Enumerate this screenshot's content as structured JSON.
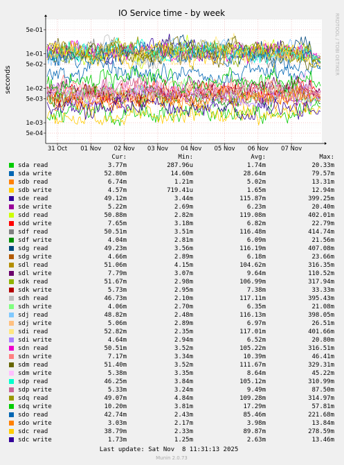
{
  "chart_data": {
    "type": "line",
    "title": "IO Service time - by week",
    "ylabel": "seconds",
    "yscale": "log",
    "ylim": [
      0.00025,
      1.0
    ],
    "y_ticks": [
      "5e-01",
      "1e-01",
      "5e-02",
      "1e-02",
      "5e-03",
      "1e-03",
      "5e-04"
    ],
    "x_ticks": [
      "31 Oct",
      "01 Nov",
      "02 Nov",
      "03 Nov",
      "04 Nov",
      "05 Nov",
      "06 Nov",
      "07 Nov"
    ],
    "legend_headers": {
      "cur": "Cur:",
      "min": "Min:",
      "avg": "Avg:",
      "max": "Max:"
    },
    "series": [
      {
        "name": "sda read",
        "color": "#00cc00",
        "cur": "3.77m",
        "min": "287.96u",
        "avg": "1.74m",
        "max": "20.33m"
      },
      {
        "name": "sda write",
        "color": "#0066b3",
        "cur": "52.80m",
        "min": "14.60m",
        "avg": "28.64m",
        "max": "79.57m"
      },
      {
        "name": "sdb read",
        "color": "#ff8000",
        "cur": "6.74m",
        "min": "1.21m",
        "avg": "5.02m",
        "max": "13.31m"
      },
      {
        "name": "sdb write",
        "color": "#ffcc00",
        "cur": "4.57m",
        "min": "719.41u",
        "avg": "1.65m",
        "max": "12.94m"
      },
      {
        "name": "sde read",
        "color": "#330099",
        "cur": "49.12m",
        "min": "3.44m",
        "avg": "115.87m",
        "max": "399.25m"
      },
      {
        "name": "sde write",
        "color": "#990099",
        "cur": "5.22m",
        "min": "2.69m",
        "avg": "6.23m",
        "max": "20.40m"
      },
      {
        "name": "sdd read",
        "color": "#ccff00",
        "cur": "50.88m",
        "min": "2.82m",
        "avg": "119.08m",
        "max": "402.01m"
      },
      {
        "name": "sdd write",
        "color": "#ff0000",
        "cur": "7.65m",
        "min": "3.18m",
        "avg": "6.82m",
        "max": "22.79m"
      },
      {
        "name": "sdf read",
        "color": "#808080",
        "cur": "50.51m",
        "min": "3.51m",
        "avg": "116.48m",
        "max": "414.74m"
      },
      {
        "name": "sdf write",
        "color": "#008f00",
        "cur": "4.04m",
        "min": "2.81m",
        "avg": "6.09m",
        "max": "21.56m"
      },
      {
        "name": "sdg read",
        "color": "#00487d",
        "cur": "49.23m",
        "min": "3.56m",
        "avg": "116.19m",
        "max": "407.08m"
      },
      {
        "name": "sdg write",
        "color": "#b35a00",
        "cur": "4.66m",
        "min": "2.89m",
        "avg": "6.18m",
        "max": "23.66m"
      },
      {
        "name": "sdl read",
        "color": "#b38f00",
        "cur": "51.06m",
        "min": "4.15m",
        "avg": "104.62m",
        "max": "316.35m"
      },
      {
        "name": "sdl write",
        "color": "#6b006b",
        "cur": "7.79m",
        "min": "3.07m",
        "avg": "9.64m",
        "max": "110.52m"
      },
      {
        "name": "sdk read",
        "color": "#8fb300",
        "cur": "51.67m",
        "min": "2.98m",
        "avg": "106.99m",
        "max": "317.94m"
      },
      {
        "name": "sdk write",
        "color": "#b30000",
        "cur": "5.73m",
        "min": "2.95m",
        "avg": "7.38m",
        "max": "33.33m"
      },
      {
        "name": "sdh read",
        "color": "#bebebe",
        "cur": "46.73m",
        "min": "2.10m",
        "avg": "117.11m",
        "max": "395.43m"
      },
      {
        "name": "sdh write",
        "color": "#80ff80",
        "cur": "4.06m",
        "min": "2.70m",
        "avg": "6.35m",
        "max": "21.08m"
      },
      {
        "name": "sdj read",
        "color": "#80c9ff",
        "cur": "48.82m",
        "min": "2.48m",
        "avg": "116.13m",
        "max": "398.05m"
      },
      {
        "name": "sdj write",
        "color": "#ffc080",
        "cur": "5.06m",
        "min": "2.89m",
        "avg": "6.97m",
        "max": "26.51m"
      },
      {
        "name": "sdi read",
        "color": "#ffe680",
        "cur": "52.82m",
        "min": "2.35m",
        "avg": "117.01m",
        "max": "401.66m"
      },
      {
        "name": "sdi write",
        "color": "#aa80ff",
        "cur": "4.64m",
        "min": "2.94m",
        "avg": "6.52m",
        "max": "20.80m"
      },
      {
        "name": "sdn read",
        "color": "#ee00cc",
        "cur": "50.51m",
        "min": "3.52m",
        "avg": "105.22m",
        "max": "316.51m"
      },
      {
        "name": "sdn write",
        "color": "#ff8080",
        "cur": "7.17m",
        "min": "3.34m",
        "avg": "10.39m",
        "max": "46.41m"
      },
      {
        "name": "sdm read",
        "color": "#666600",
        "cur": "51.40m",
        "min": "3.52m",
        "avg": "111.67m",
        "max": "329.31m"
      },
      {
        "name": "sdm write",
        "color": "#ffbfff",
        "cur": "5.38m",
        "min": "3.35m",
        "avg": "8.64m",
        "max": "45.22m"
      },
      {
        "name": "sdp read",
        "color": "#00ffcc",
        "cur": "46.25m",
        "min": "3.84m",
        "avg": "105.12m",
        "max": "310.99m"
      },
      {
        "name": "sdp write",
        "color": "#cc6699",
        "cur": "5.33m",
        "min": "3.24m",
        "avg": "9.49m",
        "max": "87.50m"
      },
      {
        "name": "sdq read",
        "color": "#999900",
        "cur": "49.07m",
        "min": "4.84m",
        "avg": "109.28m",
        "max": "314.97m"
      },
      {
        "name": "sdq write",
        "color": "#00cc00",
        "cur": "10.20m",
        "min": "3.81m",
        "avg": "17.29m",
        "max": "57.81m"
      },
      {
        "name": "sdo read",
        "color": "#0066b3",
        "cur": "42.74m",
        "min": "2.43m",
        "avg": "85.46m",
        "max": "221.68m"
      },
      {
        "name": "sdo write",
        "color": "#ff8000",
        "cur": "3.03m",
        "min": "2.17m",
        "avg": "3.98m",
        "max": "13.84m"
      },
      {
        "name": "sdc read",
        "color": "#ffcc00",
        "cur": "38.79m",
        "min": "2.33m",
        "avg": "89.87m",
        "max": "278.59m"
      },
      {
        "name": "sdc write",
        "color": "#330099",
        "cur": "1.73m",
        "min": "1.25m",
        "avg": "2.63m",
        "max": "13.46m"
      }
    ]
  },
  "last_update": "Last update: Sat Nov  8 11:31:13 2025",
  "watermark": "RRDTOOL / TOBI OETIKER",
  "footer": "Munin 2.0.73"
}
